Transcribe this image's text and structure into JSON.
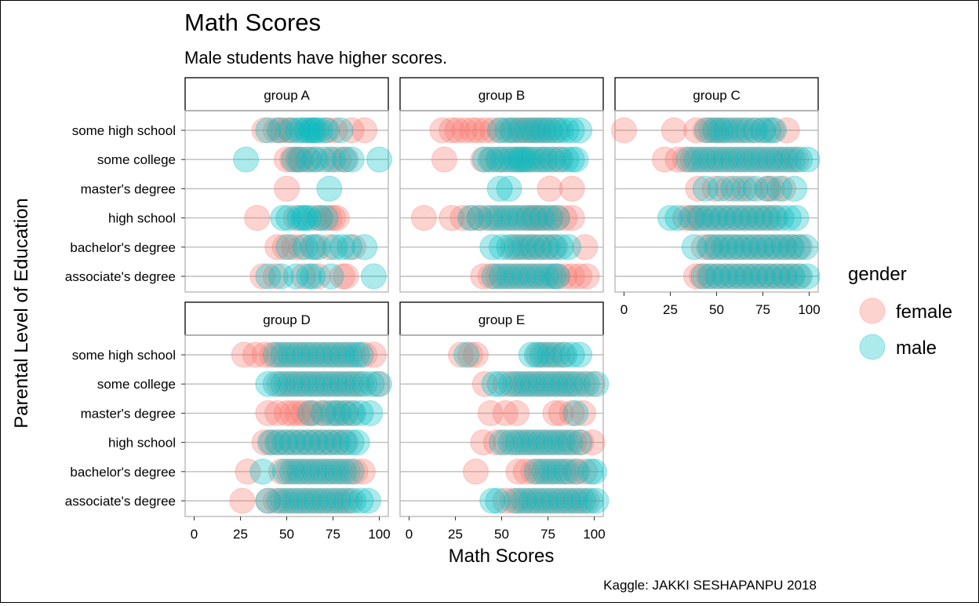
{
  "chart_data": {
    "type": "scatter",
    "title": "Math Scores",
    "subtitle": "Male students have higher scores.",
    "xlabel": "Math Scores",
    "ylabel": "Parental Level of Education",
    "caption": "Kaggle: JAKKI SESHAPANPU 2018",
    "xlim": [
      0,
      100
    ],
    "x_ticks": [
      "0",
      "25",
      "50",
      "75",
      "100"
    ],
    "y_categories": [
      "some high school",
      "some college",
      "master's degree",
      "high school",
      "bachelor's degree",
      "associate's degree"
    ],
    "legend": {
      "title": "gender",
      "placement": "right",
      "entries": [
        {
          "name": "female",
          "color": "#F8766D"
        },
        {
          "name": "male",
          "color": "#00BFC4"
        }
      ]
    },
    "grid": "horizontal major lines only",
    "facets": [
      {
        "name": "group A",
        "points": {
          "some high school": {
            "female": [
              38,
              44,
              47,
              50,
              53,
              60,
              65,
              72,
              76,
              85,
              92
            ],
            "male": [
              40,
              46,
              52,
              56,
              58,
              61,
              63,
              64,
              66,
              68,
              71,
              79
            ]
          },
          "some college": {
            "female": [
              50,
              53,
              56,
              58,
              61,
              66,
              73,
              78,
              82
            ],
            "male": [
              28,
              54,
              57,
              62,
              65,
              70,
              75,
              81,
              85,
              100
            ]
          },
          "master's degree": {
            "female": [
              50
            ],
            "male": [
              73
            ]
          },
          "high school": {
            "female": [
              34,
              55,
              65,
              68,
              73,
              75,
              77
            ],
            "male": [
              48,
              51,
              57,
              59,
              60,
              62,
              68,
              71
            ]
          },
          "bachelor's degree": {
            "female": [
              45,
              49,
              54,
              58,
              65,
              73,
              86
            ],
            "male": [
              51,
              60,
              64,
              67,
              76,
              80,
              84,
              92
            ]
          },
          "associate's degree": {
            "female": [
              37,
              44,
              59,
              67,
              80,
              82
            ],
            "male": [
              40,
              47,
              55,
              62,
              64,
              74,
              97
            ]
          }
        }
      },
      {
        "name": "group B",
        "points": {
          "some high school": {
            "female": [
              18,
              23,
              26,
              30,
              34,
              37,
              41,
              45,
              50,
              55,
              58,
              61,
              63,
              66,
              69,
              72,
              75,
              80
            ],
            "male": [
              49,
              53,
              56,
              60,
              64,
              67,
              70,
              73,
              76,
              79,
              82,
              85,
              88,
              92
            ]
          },
          "some college": {
            "female": [
              19,
              40,
              45,
              49,
              53,
              57,
              61,
              65,
              69,
              73,
              78,
              82
            ],
            "male": [
              41,
              44,
              48,
              51,
              55,
              58,
              60,
              62,
              64,
              67,
              71,
              74,
              77,
              81,
              85,
              88,
              90
            ]
          },
          "master's degree": {
            "female": [
              76,
              88
            ],
            "male": [
              49,
              54
            ]
          },
          "high school": {
            "female": [
              8,
              23,
              29,
              34,
              38,
              42,
              46,
              50,
              54,
              58,
              62,
              65,
              67,
              69,
              71,
              74,
              77,
              80,
              84,
              88
            ],
            "male": [
              33,
              38,
              44,
              48,
              52,
              56,
              60,
              64,
              68,
              72,
              76,
              80
            ]
          },
          "bachelor's degree": {
            "female": [
              56,
              60,
              64,
              67,
              71,
              75,
              79,
              95
            ],
            "male": [
              45,
              50,
              54,
              58,
              62,
              66,
              70,
              74,
              78,
              82,
              86
            ]
          },
          "associate's degree": {
            "female": [
              40,
              44,
              48,
              52,
              56,
              60,
              64,
              68,
              72,
              76,
              80,
              84,
              88,
              92,
              96
            ],
            "male": [
              46,
              50,
              54,
              58,
              62,
              66,
              70,
              74,
              78,
              80
            ]
          }
        }
      },
      {
        "name": "group C",
        "points": {
          "some high school": {
            "female": [
              0,
              27,
              39,
              44,
              47,
              50,
              53,
              57,
              61,
              65,
              70,
              75,
              80,
              88
            ],
            "male": [
              45,
              49,
              52,
              55,
              59,
              63,
              67,
              71,
              75,
              78,
              81
            ]
          },
          "some college": {
            "female": [
              22,
              29,
              33,
              37,
              41,
              45,
              49,
              53,
              57,
              61,
              65,
              69,
              73,
              77,
              81,
              85,
              89,
              93
            ],
            "male": [
              35,
              39,
              43,
              47,
              51,
              55,
              59,
              63,
              67,
              71,
              75,
              79,
              83,
              87,
              91,
              95,
              99
            ]
          },
          "master's degree": {
            "female": [
              40,
              49,
              56,
              62,
              68,
              77,
              80,
              86
            ],
            "male": [
              44,
              52,
              59,
              65,
              71,
              78,
              84,
              92
            ]
          },
          "high school": {
            "female": [
              33,
              36,
              39,
              42,
              46,
              50,
              54,
              58,
              62,
              66,
              70,
              74,
              78,
              82
            ],
            "male": [
              25,
              29,
              37,
              41,
              45,
              49,
              53,
              57,
              61,
              65,
              69,
              73,
              77,
              81,
              85,
              89,
              93
            ]
          },
          "bachelor's degree": {
            "female": [
              43,
              47,
              51,
              55,
              59,
              63,
              67,
              71,
              75,
              79,
              83,
              87,
              91,
              95
            ],
            "male": [
              38,
              46,
              50,
              54,
              58,
              62,
              66,
              70,
              74,
              78,
              82,
              86,
              90,
              94,
              98
            ]
          },
          "associate's degree": {
            "female": [
              39,
              42,
              46,
              50,
              54,
              58,
              62,
              66,
              70,
              74,
              78,
              82,
              86,
              90,
              94
            ],
            "male": [
              43,
              47,
              51,
              55,
              59,
              63,
              67,
              71,
              75,
              79,
              83,
              87,
              91,
              95,
              99
            ]
          }
        }
      },
      {
        "name": "group D",
        "points": {
          "some high school": {
            "female": [
              27,
              33,
              38,
              42,
              46,
              50,
              54,
              58,
              62,
              66,
              70,
              74,
              78,
              82,
              86,
              92,
              97
            ],
            "male": [
              44,
              48,
              52,
              56,
              60,
              64,
              68,
              72,
              76,
              80,
              84,
              88,
              90
            ]
          },
          "some college": {
            "female": [
              46,
              50,
              54,
              58,
              62,
              66,
              70,
              74,
              78,
              82,
              86,
              90,
              99
            ],
            "male": [
              40,
              44,
              48,
              52,
              56,
              60,
              64,
              68,
              72,
              76,
              80,
              84,
              88,
              92,
              96,
              100
            ]
          },
          "master's degree": {
            "female": [
              40,
              45,
              50,
              53,
              56,
              59,
              62,
              65,
              69,
              73,
              77,
              81,
              85
            ],
            "male": [
              63,
              70,
              75,
              78,
              82,
              86,
              90,
              95
            ]
          },
          "high school": {
            "female": [
              38,
              42,
              46,
              50,
              54,
              58,
              62,
              66,
              70,
              74,
              78,
              82
            ],
            "male": [
              41,
              45,
              49,
              53,
              57,
              61,
              65,
              69,
              73,
              77,
              81,
              85,
              88
            ]
          },
          "bachelor's degree": {
            "female": [
              29,
              47,
              51,
              55,
              59,
              63,
              67,
              71,
              75,
              79,
              83,
              87,
              91
            ],
            "male": [
              37,
              49,
              53,
              57,
              61,
              65,
              69,
              73,
              77,
              81,
              85
            ]
          },
          "associate's degree": {
            "female": [
              26,
              40,
              44,
              48,
              52,
              56,
              60,
              64,
              68,
              72,
              76,
              80,
              84
            ],
            "male": [
              40,
              46,
              50,
              54,
              58,
              62,
              66,
              70,
              74,
              78,
              82,
              86,
              90,
              94
            ]
          }
        }
      },
      {
        "name": "group E",
        "points": {
          "some high school": {
            "female": [
              28,
              33,
              36,
              70,
              74,
              78,
              83
            ],
            "male": [
              31,
              66,
              69,
              72,
              76,
              80,
              84,
              88,
              92
            ]
          },
          "some college": {
            "female": [
              41,
              52,
              57,
              61,
              65,
              69,
              73,
              77,
              81,
              85,
              89,
              94,
              99
            ],
            "male": [
              46,
              49,
              55,
              59,
              63,
              67,
              71,
              75,
              79,
              83,
              87,
              91,
              96,
              101
            ]
          },
          "master's degree": {
            "female": [
              44,
              52,
              58,
              79,
              82,
              88,
              94
            ],
            "male": [
              90
            ]
          },
          "high school": {
            "female": [
              40,
              47,
              52,
              57,
              61,
              65,
              69,
              73,
              77,
              81,
              85,
              89,
              93,
              99
            ],
            "male": [
              50,
              55,
              59,
              63,
              67,
              71,
              75,
              79,
              83,
              87,
              92
            ]
          },
          "bachelor's degree": {
            "female": [
              36,
              59,
              63,
              67,
              71,
              75,
              79,
              83,
              87,
              91,
              95
            ],
            "male": [
              69,
              73,
              77,
              81,
              85,
              90,
              98,
              100
            ]
          },
          "associate's degree": {
            "female": [
              52,
              56,
              60,
              64,
              68,
              72,
              76,
              80,
              84,
              88,
              92,
              96
            ],
            "male": [
              45,
              48,
              58,
              62,
              66,
              70,
              74,
              78,
              82,
              86,
              90,
              94,
              98,
              101
            ]
          }
        }
      }
    ]
  }
}
